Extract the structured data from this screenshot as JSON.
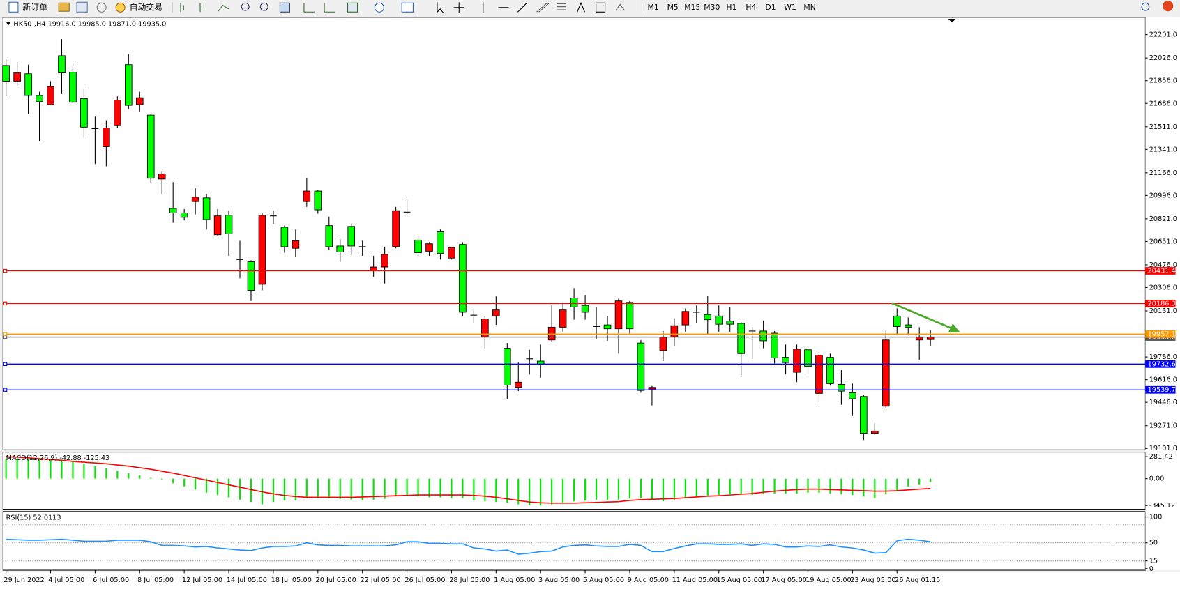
{
  "toolbar": {
    "buttons": [
      "新订单",
      "自动交易"
    ],
    "timeframes": [
      "M1",
      "M5",
      "M15",
      "M30",
      "H1",
      "H4",
      "D1",
      "W1",
      "MN"
    ]
  },
  "chart_data": [
    {
      "type": "candlestick",
      "title": "HK50-,H4  19916.0 19985.0 19871.0 19935.0",
      "categories": [
        "29 Jun 2022",
        null,
        null,
        null,
        "4 Jul 05:00",
        null,
        null,
        null,
        "6 Jul 05:00",
        null,
        null,
        null,
        "8 Jul 05:00",
        null,
        null,
        null,
        "12 Jul 05:00",
        null,
        null,
        null,
        "14 Jul 05:00",
        null,
        null,
        null,
        "18 Jul 05:00",
        null,
        null,
        null,
        "20 Jul 05:00",
        null,
        null,
        null,
        "22 Jul 05:00",
        null,
        null,
        null,
        "26 Jul 05:00",
        null,
        null,
        null,
        "28 Jul 05:00",
        null,
        null,
        null,
        "1 Aug 05:00",
        null,
        null,
        null,
        "3 Aug 05:00",
        null,
        null,
        null,
        "5 Aug 05:00",
        null,
        null,
        null,
        "9 Aug 05:00",
        null,
        null,
        null,
        "11 Aug 05:00",
        null,
        null,
        null,
        "15 Aug 05:00",
        null,
        null,
        null,
        "17 Aug 05:00",
        null,
        null,
        null,
        "19 Aug 05:00",
        null,
        null,
        null,
        "23 Aug 05:00",
        null,
        null,
        null,
        "26 Aug 01:15",
        null,
        null,
        null
      ],
      "open": [
        21970,
        21852,
        21908,
        21745,
        21677,
        22043,
        21919,
        21722,
        21497,
        21361,
        21519,
        21976,
        21677,
        21598,
        21119,
        20899,
        20865,
        20950,
        20978,
        20702,
        20848,
        20516,
        20499,
        20330,
        20843,
        20758,
        20600,
        20950,
        21029,
        20770,
        20617,
        20764,
        20612,
        20431,
        20460,
        20612,
        20871,
        20662,
        20578,
        20724,
        20527,
        20629,
        20099,
        19935,
        20093,
        19851,
        19558,
        19772,
        19755,
        19913,
        20009,
        20228,
        20172,
        20014,
        20026,
        19997,
        20195,
        19890,
        19546,
        19834,
        19935,
        20026,
        20121,
        20104,
        20093,
        20054,
        20037,
        19980,
        19980,
        19964,
        19783,
        19671,
        19840,
        19513,
        19783,
        19580,
        19518,
        19490,
        19214,
        19417,
        20093,
        20026,
        19913,
        19916
      ],
      "high": [
        22021,
        21998,
        21976,
        21773,
        21852,
        22167,
        21964,
        21795,
        21587,
        21559,
        21739,
        22055,
        21773,
        21604,
        21175,
        21096,
        20894,
        21051,
        21006,
        20894,
        20882,
        20657,
        20510,
        20865,
        20882,
        20770,
        20741,
        21125,
        21040,
        20837,
        20668,
        20786,
        20657,
        20544,
        20612,
        20910,
        20967,
        20696,
        20646,
        20741,
        20612,
        20646,
        20150,
        20093,
        20240,
        19890,
        19744,
        19840,
        19879,
        20172,
        20183,
        20302,
        20251,
        20161,
        20093,
        20223,
        20206,
        19913,
        19569,
        19980,
        20076,
        20150,
        20172,
        20245,
        20172,
        20161,
        20048,
        20009,
        20059,
        19980,
        19879,
        19879,
        19868,
        19828,
        19811,
        19687,
        19586,
        19501,
        19287,
        19980,
        20150,
        20082,
        20009,
        19985
      ],
      "low": [
        21739,
        21812,
        21604,
        21401,
        21671,
        21756,
        21688,
        21429,
        21232,
        21215,
        21502,
        21643,
        21626,
        21091,
        21006,
        20792,
        20809,
        20854,
        20741,
        20696,
        20544,
        20375,
        20206,
        20285,
        20781,
        20567,
        20538,
        20910,
        20860,
        20589,
        20499,
        20550,
        20544,
        20386,
        20336,
        20600,
        20832,
        20538,
        20544,
        20516,
        20516,
        20093,
        20037,
        19851,
        20026,
        19468,
        19530,
        19654,
        19631,
        19896,
        19969,
        20065,
        20065,
        19918,
        19907,
        19811,
        19952,
        19518,
        19423,
        19755,
        19868,
        19975,
        20037,
        19952,
        19975,
        19975,
        19637,
        19772,
        19851,
        19738,
        19659,
        19597,
        19659,
        19445,
        19575,
        19428,
        19344,
        19163,
        19203,
        19400,
        19952,
        19947,
        19766,
        19871
      ],
      "close": [
        21852,
        21914,
        21745,
        21699,
        21812,
        21914,
        21694,
        21508,
        21497,
        21502,
        21711,
        21671,
        21728,
        21125,
        21158,
        20865,
        20832,
        20984,
        20815,
        20843,
        20708,
        20516,
        20285,
        20848,
        20843,
        20612,
        20657,
        21029,
        20888,
        20612,
        20572,
        20617,
        20612,
        20460,
        20555,
        20882,
        20871,
        20567,
        20634,
        20561,
        20606,
        20121,
        20099,
        20071,
        20138,
        19575,
        19597,
        19772,
        19727,
        20009,
        20138,
        20161,
        20121,
        20014,
        19997,
        20206,
        19997,
        19535,
        19558,
        19935,
        20020,
        20127,
        20121,
        20065,
        20031,
        20031,
        19811,
        19980,
        19907,
        19778,
        19744,
        19845,
        19716,
        19800,
        19586,
        19530,
        19473,
        19214,
        19231,
        19913,
        20014,
        20009,
        19935,
        19935
      ],
      "up_color": "#ff0000",
      "down_color": "#00ff00",
      "ylim": [
        19090,
        22325
      ],
      "yticks": [
        {
          "value": 22201,
          "label": "22201.0"
        },
        {
          "value": 22026,
          "label": "22026.0"
        },
        {
          "value": 21856,
          "label": "21856.0"
        },
        {
          "value": 21686,
          "label": "21686.0"
        },
        {
          "value": 21511,
          "label": "21511.0"
        },
        {
          "value": 21341,
          "label": "21341.0"
        },
        {
          "value": 21166,
          "label": "21166.0"
        },
        {
          "value": 20996,
          "label": "20996.0"
        },
        {
          "value": 20821,
          "label": "20821.0"
        },
        {
          "value": 20651,
          "label": "20651.0"
        },
        {
          "value": 20476,
          "label": "20476.0"
        },
        {
          "value": 20306,
          "label": "20306.0"
        },
        {
          "value": 20131,
          "label": "20131.0"
        },
        {
          "value": 19786,
          "label": "19786.0"
        },
        {
          "value": 19616,
          "label": "19616.0"
        },
        {
          "value": 19446,
          "label": "19446.0"
        },
        {
          "value": 19271,
          "label": "19271.0"
        },
        {
          "value": 19101,
          "label": "19101.0"
        }
      ],
      "levels": [
        {
          "value": 20431.4,
          "color": "#ff0000"
        },
        {
          "value": 20186.3,
          "color": "#ff0000"
        },
        {
          "value": 19935,
          "label": "19935.0",
          "color": "#555555"
        },
        {
          "value": 19957.1,
          "color": "#ff9900"
        },
        {
          "value": 19732.6,
          "color": "#0000ff"
        },
        {
          "value": 19539.7,
          "color": "#0000ff"
        }
      ]
    },
    {
      "type": "macd",
      "title": "MACD(12,26,9) -42.88 -125.43",
      "histogram": [
        250,
        255,
        250,
        245,
        240,
        230,
        215,
        190,
        160,
        130,
        100,
        70,
        40,
        10,
        -10,
        -60,
        -100,
        -140,
        -180,
        -210,
        -240,
        -270,
        -300,
        -330,
        -300,
        -280,
        -280,
        -250,
        -240,
        -250,
        -260,
        -270,
        -280,
        -270,
        -260,
        -230,
        -220,
        -230,
        -240,
        -240,
        -250,
        -250,
        -280,
        -290,
        -300,
        -310,
        -330,
        -340,
        -345,
        -330,
        -310,
        -290,
        -280,
        -270,
        -270,
        -270,
        -250,
        -250,
        -280,
        -290,
        -270,
        -250,
        -230,
        -220,
        -210,
        -200,
        -200,
        -210,
        -200,
        -190,
        -190,
        -190,
        -180,
        -180,
        -190,
        -200,
        -210,
        -230,
        -250,
        -200,
        -150,
        -100,
        -80,
        -42.88
      ],
      "signal": [
        280,
        275,
        265,
        255,
        245,
        235,
        220,
        210,
        200,
        190,
        175,
        160,
        140,
        120,
        95,
        70,
        40,
        10,
        -20,
        -50,
        -80,
        -110,
        -140,
        -170,
        -195,
        -215,
        -230,
        -240,
        -240,
        -240,
        -240,
        -240,
        -235,
        -230,
        -225,
        -220,
        -215,
        -210,
        -210,
        -210,
        -210,
        -210,
        -215,
        -225,
        -240,
        -260,
        -280,
        -300,
        -310,
        -315,
        -315,
        -315,
        -310,
        -305,
        -300,
        -295,
        -280,
        -270,
        -265,
        -260,
        -255,
        -245,
        -235,
        -225,
        -220,
        -210,
        -200,
        -190,
        -175,
        -160,
        -150,
        -140,
        -135,
        -135,
        -140,
        -145,
        -150,
        -155,
        -160,
        -160,
        -155,
        -145,
        -135,
        -125.43
      ],
      "histogram_color": "#00e600",
      "signal_color": "#ff0000",
      "ylim": [
        -393,
        330
      ],
      "yticks": [
        281.42,
        {
          "value": 0,
          "label": "0.00"
        },
        -345.12
      ]
    },
    {
      "type": "line",
      "title": "RSI(15) 52.0113",
      "values": [
        57,
        56,
        55,
        55,
        56,
        57,
        55,
        53,
        53,
        53,
        55,
        55,
        55,
        52,
        45,
        45,
        44,
        42,
        43,
        40,
        38,
        36,
        35,
        40,
        43,
        43,
        44,
        50,
        46,
        45,
        45,
        44,
        44,
        44,
        44,
        46,
        52,
        52,
        49,
        49,
        48,
        48,
        40,
        38,
        34,
        36,
        28,
        30,
        33,
        34,
        42,
        45,
        46,
        44,
        43,
        43,
        47,
        45,
        33,
        33,
        39,
        44,
        48,
        48,
        47,
        47,
        48,
        45,
        48,
        47,
        42,
        42,
        44,
        43,
        46,
        42,
        40,
        36,
        30,
        31,
        54,
        57,
        55,
        52.0113
      ],
      "color": "#1e90ff",
      "ylim": [
        -3,
        109
      ],
      "yticks": [
        100,
        50,
        15,
        0
      ],
      "levels": [
        85,
        50,
        15
      ]
    }
  ]
}
